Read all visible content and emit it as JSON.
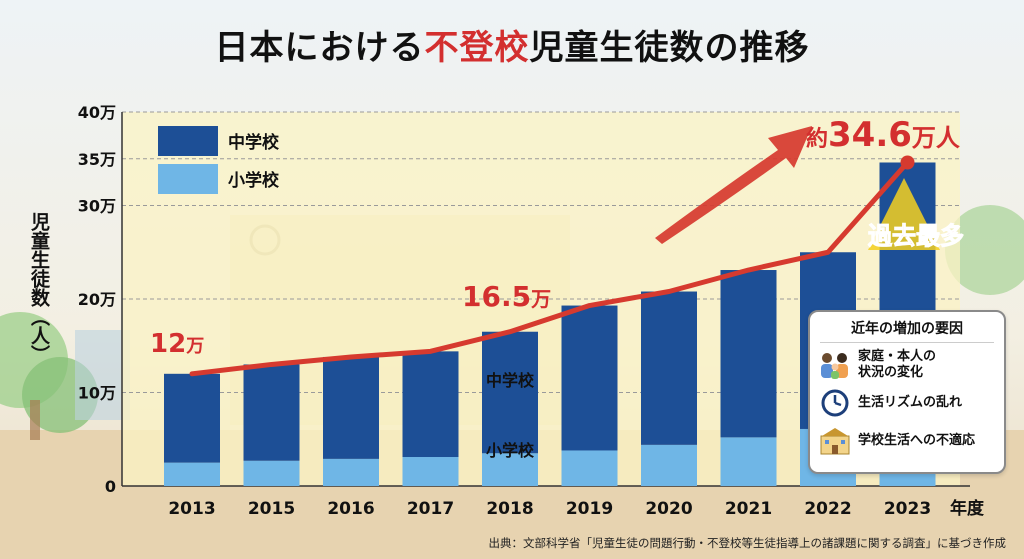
{
  "title": {
    "part1": "日本における",
    "highlight": "不登校",
    "part2": "児童生徒数の推移"
  },
  "y_axis_label": "児童生徒数（人）",
  "x_unit": "年度",
  "source": "出典：文部科学省「児童生徒の問題行動・不登校等生徒指導上の諸課題に関する調査」に基づき作成",
  "colors": {
    "middle": "#1d4f96",
    "elementary": "#6fb6e6",
    "trend": "#d63a2f",
    "accent": "#d32f2f",
    "badge": "#f5d020"
  },
  "annotations": {
    "start": {
      "value": "12",
      "unit": "万"
    },
    "mid": {
      "value": "16.5",
      "unit": "万"
    },
    "end": {
      "prefix": "約",
      "value": "34.6",
      "unit": "万人"
    },
    "record": "過去最多"
  },
  "bar_labels": {
    "middle": "中学校",
    "elementary": "小学校"
  },
  "factors": {
    "title": "近年の増加の要因",
    "items": [
      {
        "icon": "family-icon",
        "text": [
          "家庭・本人の",
          "状況の変化"
        ]
      },
      {
        "icon": "clock-icon",
        "text": [
          "生活リズムの乱れ"
        ]
      },
      {
        "icon": "school-icon",
        "text": [
          "学校生活への不適応"
        ]
      }
    ]
  },
  "chart_data": {
    "type": "bar",
    "stacked": true,
    "categories": [
      "2013",
      "2015",
      "2016",
      "2017",
      "2018",
      "2019",
      "2020",
      "2021",
      "2022",
      "2023"
    ],
    "series": [
      {
        "name": "小学校",
        "values": [
          2.5,
          2.7,
          2.9,
          3.1,
          3.5,
          3.8,
          4.4,
          5.2,
          6.1,
          8.0
        ]
      },
      {
        "name": "中学校",
        "values": [
          9.5,
          10.3,
          10.9,
          11.3,
          13.0,
          15.5,
          16.4,
          17.9,
          18.9,
          26.6
        ]
      }
    ],
    "trend": {
      "values": [
        12,
        13.0,
        13.8,
        14.4,
        16.5,
        19.3,
        20.8,
        23.1,
        25.0,
        34.6
      ]
    },
    "yticks": [
      "0",
      "10万",
      "20万",
      "30万",
      "35万",
      "40万"
    ],
    "ytick_values": [
      0,
      10,
      20,
      30,
      35,
      40
    ],
    "ylim": [
      0,
      40
    ],
    "xlabel": "年度",
    "ylabel": "児童生徒数（人）",
    "legend": {
      "placement": "top-left",
      "entries": [
        "中学校",
        "小学校"
      ]
    },
    "grid": true
  }
}
